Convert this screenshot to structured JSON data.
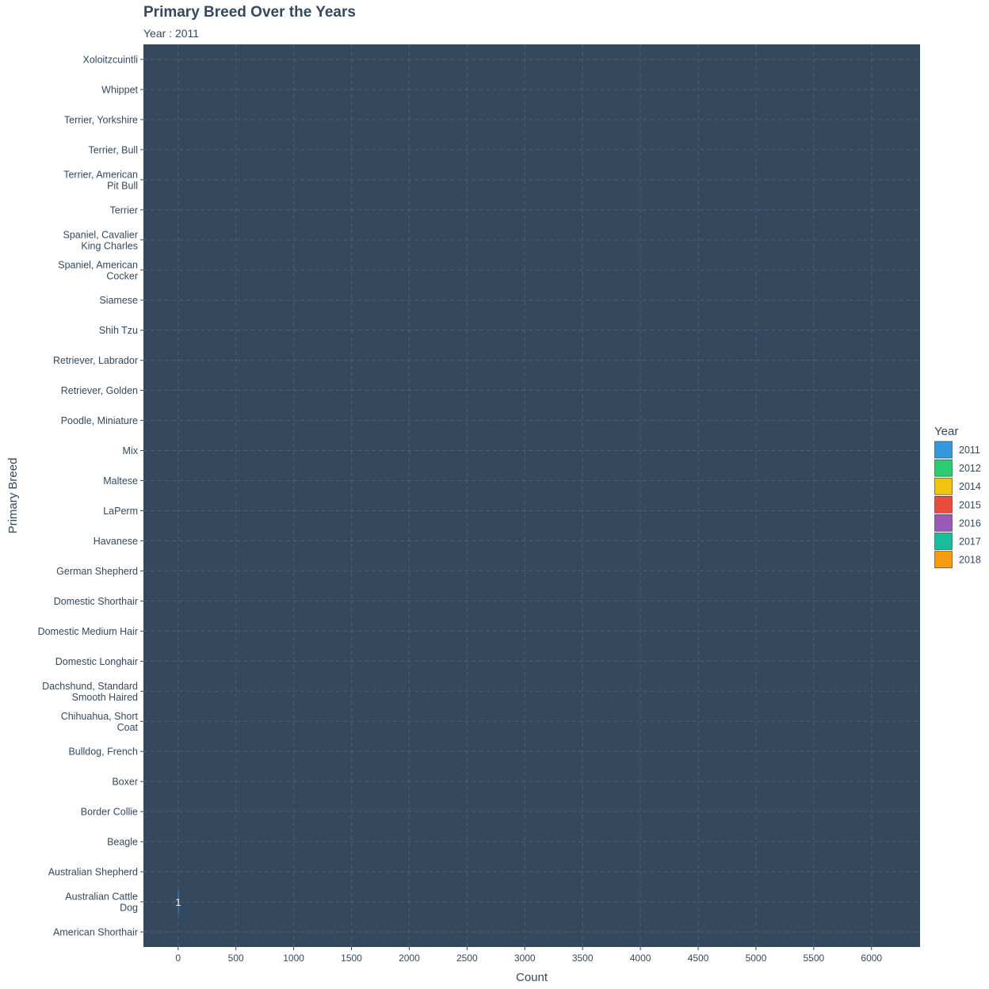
{
  "chart_data": {
    "type": "bar",
    "orientation": "horizontal",
    "title": "Primary Breed Over the Years",
    "subtitle": "Year : 2011",
    "xlabel": "Count",
    "ylabel": "Primary Breed",
    "xlim": [
      -300,
      6420
    ],
    "x_ticks": [
      0,
      500,
      1000,
      1500,
      2000,
      2500,
      3000,
      3500,
      4000,
      4500,
      5000,
      5500,
      6000
    ],
    "grid": true,
    "background_color": "#34495e",
    "grid_color": "#4a6179",
    "categories": [
      [
        "American Shorthair"
      ],
      [
        "Australian Cattle",
        "Dog"
      ],
      [
        "Australian Shepherd"
      ],
      [
        "Beagle"
      ],
      [
        "Border Collie"
      ],
      [
        "Boxer"
      ],
      [
        "Bulldog, French"
      ],
      [
        "Chihuahua, Short",
        "Coat"
      ],
      [
        "Dachshund, Standard",
        "Smooth Haired"
      ],
      [
        "Domestic Longhair"
      ],
      [
        "Domestic Medium Hair"
      ],
      [
        "Domestic Shorthair"
      ],
      [
        "German Shepherd"
      ],
      [
        "Havanese"
      ],
      [
        "LaPerm"
      ],
      [
        "Maltese"
      ],
      [
        "Mix"
      ],
      [
        "Poodle, Miniature"
      ],
      [
        "Retriever, Golden"
      ],
      [
        "Retriever, Labrador"
      ],
      [
        "Shih Tzu"
      ],
      [
        "Siamese"
      ],
      [
        "Spaniel, American",
        "Cocker"
      ],
      [
        "Spaniel, Cavalier",
        "King Charles"
      ],
      [
        "Terrier"
      ],
      [
        "Terrier, American",
        "Pit Bull"
      ],
      [
        "Terrier, Bull"
      ],
      [
        "Terrier, Yorkshire"
      ],
      [
        "Whippet"
      ],
      [
        "Xoloitzcuintli"
      ]
    ],
    "series": [
      {
        "name": "2011",
        "values": [
          null,
          1,
          null,
          null,
          null,
          null,
          null,
          null,
          null,
          null,
          null,
          null,
          null,
          null,
          null,
          null,
          null,
          null,
          null,
          null,
          null,
          null,
          null,
          null,
          null,
          null,
          null,
          null,
          null,
          null
        ]
      }
    ],
    "data_labels": [
      {
        "category_index": 1,
        "value": 1,
        "text": "1"
      }
    ],
    "legend": {
      "title": "Year",
      "position": "right",
      "entries": [
        {
          "label": "2011",
          "color": "#3498db"
        },
        {
          "label": "2012",
          "color": "#2ecc71"
        },
        {
          "label": "2014",
          "color": "#f1c40f"
        },
        {
          "label": "2015",
          "color": "#e74c3c"
        },
        {
          "label": "2016",
          "color": "#9b59b6"
        },
        {
          "label": "2017",
          "color": "#1abc9c"
        },
        {
          "label": "2018",
          "color": "#f39c12"
        }
      ]
    }
  }
}
